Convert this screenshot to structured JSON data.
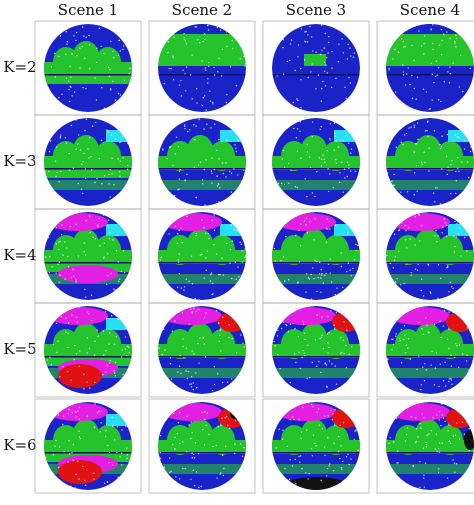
{
  "columns": [
    "Scene 1",
    "Scene 2",
    "Scene 3",
    "Scene 4"
  ],
  "rows": [
    "K=2",
    "K=3",
    "K=4",
    "K=5",
    "K=6"
  ]
}
